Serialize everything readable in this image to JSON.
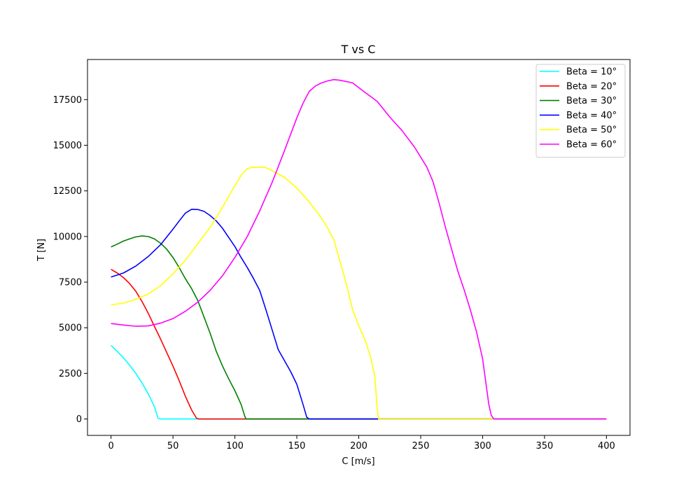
{
  "chart_data": {
    "type": "line",
    "title": "T vs C",
    "xlabel": "C [m/s]",
    "ylabel": "T [N]",
    "xlim": [
      -19,
      419
    ],
    "ylim": [
      -900,
      19700
    ],
    "xticks": [
      0,
      50,
      100,
      150,
      200,
      250,
      300,
      350,
      400
    ],
    "yticks": [
      0,
      2500,
      5000,
      7500,
      10000,
      12500,
      15000,
      17500
    ],
    "grid": false,
    "legend_position": "top-right",
    "series": [
      {
        "name": "Beta = 10°",
        "color": "#00ffff",
        "points": [
          [
            0,
            4030
          ],
          [
            5,
            3700
          ],
          [
            10,
            3350
          ],
          [
            15,
            2950
          ],
          [
            20,
            2500
          ],
          [
            25,
            1980
          ],
          [
            30,
            1380
          ],
          [
            35,
            680
          ],
          [
            38,
            30
          ],
          [
            40,
            0
          ],
          [
            400,
            0
          ]
        ]
      },
      {
        "name": "Beta = 20°",
        "color": "#ff0000",
        "points": [
          [
            0,
            8200
          ],
          [
            5,
            8000
          ],
          [
            10,
            7750
          ],
          [
            15,
            7420
          ],
          [
            20,
            7000
          ],
          [
            25,
            6440
          ],
          [
            30,
            5800
          ],
          [
            35,
            5080
          ],
          [
            40,
            4380
          ],
          [
            45,
            3640
          ],
          [
            50,
            2900
          ],
          [
            55,
            2100
          ],
          [
            60,
            1250
          ],
          [
            65,
            500
          ],
          [
            69,
            40
          ],
          [
            71,
            0
          ],
          [
            400,
            0
          ]
        ]
      },
      {
        "name": "Beta = 30°",
        "color": "#008000",
        "points": [
          [
            0,
            9430
          ],
          [
            5,
            9580
          ],
          [
            10,
            9750
          ],
          [
            15,
            9870
          ],
          [
            20,
            9980
          ],
          [
            25,
            10030
          ],
          [
            30,
            10000
          ],
          [
            35,
            9870
          ],
          [
            40,
            9630
          ],
          [
            45,
            9300
          ],
          [
            50,
            8850
          ],
          [
            55,
            8300
          ],
          [
            60,
            7690
          ],
          [
            65,
            7150
          ],
          [
            70,
            6500
          ],
          [
            75,
            5600
          ],
          [
            80,
            4700
          ],
          [
            85,
            3700
          ],
          [
            90,
            2900
          ],
          [
            95,
            2200
          ],
          [
            100,
            1550
          ],
          [
            105,
            800
          ],
          [
            108,
            150
          ],
          [
            109,
            0
          ],
          [
            400,
            0
          ]
        ]
      },
      {
        "name": "Beta = 40°",
        "color": "#0000ff",
        "points": [
          [
            0,
            7780
          ],
          [
            10,
            8000
          ],
          [
            20,
            8380
          ],
          [
            30,
            8900
          ],
          [
            40,
            9550
          ],
          [
            50,
            10400
          ],
          [
            55,
            10850
          ],
          [
            60,
            11280
          ],
          [
            65,
            11490
          ],
          [
            70,
            11480
          ],
          [
            75,
            11380
          ],
          [
            80,
            11150
          ],
          [
            85,
            10850
          ],
          [
            90,
            10450
          ],
          [
            95,
            9950
          ],
          [
            100,
            9450
          ],
          [
            105,
            8850
          ],
          [
            110,
            8300
          ],
          [
            115,
            7700
          ],
          [
            120,
            7050
          ],
          [
            125,
            6000
          ],
          [
            130,
            4900
          ],
          [
            135,
            3800
          ],
          [
            140,
            3200
          ],
          [
            145,
            2600
          ],
          [
            150,
            1900
          ],
          [
            155,
            800
          ],
          [
            158,
            100
          ],
          [
            160,
            0
          ],
          [
            400,
            0
          ]
        ]
      },
      {
        "name": "Beta = 50°",
        "color": "#ffff00",
        "points": [
          [
            0,
            6250
          ],
          [
            10,
            6350
          ],
          [
            20,
            6550
          ],
          [
            30,
            6850
          ],
          [
            40,
            7300
          ],
          [
            50,
            7950
          ],
          [
            60,
            8700
          ],
          [
            70,
            9600
          ],
          [
            80,
            10500
          ],
          [
            90,
            11600
          ],
          [
            100,
            12800
          ],
          [
            105,
            13350
          ],
          [
            110,
            13720
          ],
          [
            115,
            13800
          ],
          [
            120,
            13790
          ],
          [
            125,
            13780
          ],
          [
            130,
            13600
          ],
          [
            140,
            13250
          ],
          [
            150,
            12650
          ],
          [
            160,
            11900
          ],
          [
            170,
            11000
          ],
          [
            175,
            10450
          ],
          [
            180,
            9800
          ],
          [
            185,
            8600
          ],
          [
            190,
            7400
          ],
          [
            195,
            6000
          ],
          [
            200,
            5100
          ],
          [
            205,
            4350
          ],
          [
            210,
            3300
          ],
          [
            213,
            2300
          ],
          [
            215,
            500
          ],
          [
            216,
            0
          ],
          [
            400,
            0
          ]
        ]
      },
      {
        "name": "Beta = 60°",
        "color": "#ff00ff",
        "points": [
          [
            0,
            5230
          ],
          [
            10,
            5150
          ],
          [
            20,
            5080
          ],
          [
            30,
            5100
          ],
          [
            40,
            5250
          ],
          [
            50,
            5500
          ],
          [
            60,
            5900
          ],
          [
            70,
            6400
          ],
          [
            80,
            7050
          ],
          [
            90,
            7850
          ],
          [
            100,
            8850
          ],
          [
            110,
            10000
          ],
          [
            120,
            11400
          ],
          [
            130,
            12950
          ],
          [
            140,
            14700
          ],
          [
            150,
            16500
          ],
          [
            155,
            17300
          ],
          [
            160,
            17950
          ],
          [
            165,
            18250
          ],
          [
            170,
            18420
          ],
          [
            175,
            18530
          ],
          [
            180,
            18600
          ],
          [
            185,
            18560
          ],
          [
            195,
            18420
          ],
          [
            205,
            17900
          ],
          [
            215,
            17400
          ],
          [
            225,
            16550
          ],
          [
            235,
            15800
          ],
          [
            245,
            14900
          ],
          [
            255,
            13800
          ],
          [
            260,
            13000
          ],
          [
            265,
            11800
          ],
          [
            270,
            10500
          ],
          [
            275,
            9300
          ],
          [
            280,
            8100
          ],
          [
            285,
            7100
          ],
          [
            290,
            6000
          ],
          [
            295,
            4800
          ],
          [
            300,
            3300
          ],
          [
            303,
            1800
          ],
          [
            305,
            800
          ],
          [
            307,
            200
          ],
          [
            309,
            0
          ],
          [
            400,
            0
          ]
        ]
      }
    ]
  }
}
